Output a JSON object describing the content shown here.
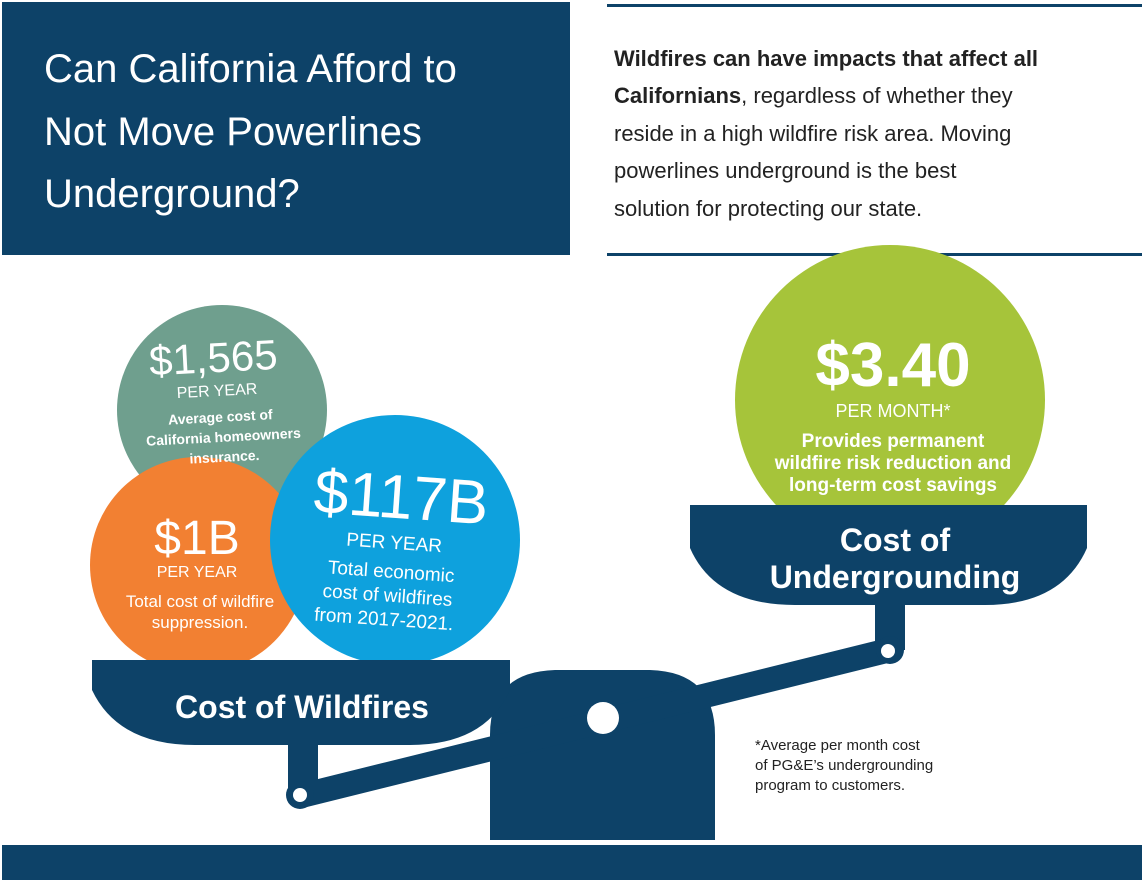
{
  "title": {
    "lines": [
      "Can California Afford to",
      "Not Move Powerlines",
      "Underground?"
    ]
  },
  "intro": {
    "lines": [
      [
        "Wildfires can have impacts that affect all"
      ],
      [
        "Californians",
        ", regardless of whether they"
      ],
      [
        "reside in a high wildfire risk area. Moving"
      ],
      [
        "powerlines underground is the best"
      ],
      [
        "solution for protecting our state."
      ]
    ]
  },
  "costs": [
    {
      "amount": "$1,565",
      "period": "PER YEAR",
      "description": [
        "Average cost of",
        "California homeowners",
        "insurance."
      ]
    },
    {
      "amount": "$1B",
      "period": "PER YEAR",
      "description": [
        "Total cost of wildfire",
        "suppression."
      ]
    },
    {
      "amount": "$117B",
      "period": "PER YEAR",
      "description": [
        "Total economic",
        "cost of wildfires",
        "from 2017-2021."
      ]
    },
    {
      "amount": "$3.40",
      "period": "PER MONTH*",
      "description": [
        "Provides permanent",
        "wildfire risk reduction and",
        "long-term cost savings"
      ]
    }
  ],
  "pans": {
    "wildfires": [
      "Cost of Wildfires"
    ],
    "undergrounding": [
      "Cost of",
      "Undergrounding"
    ]
  },
  "footnote": [
    "*Average per month cost",
    "of PG&E’s undergrounding",
    "program to customers."
  ]
}
